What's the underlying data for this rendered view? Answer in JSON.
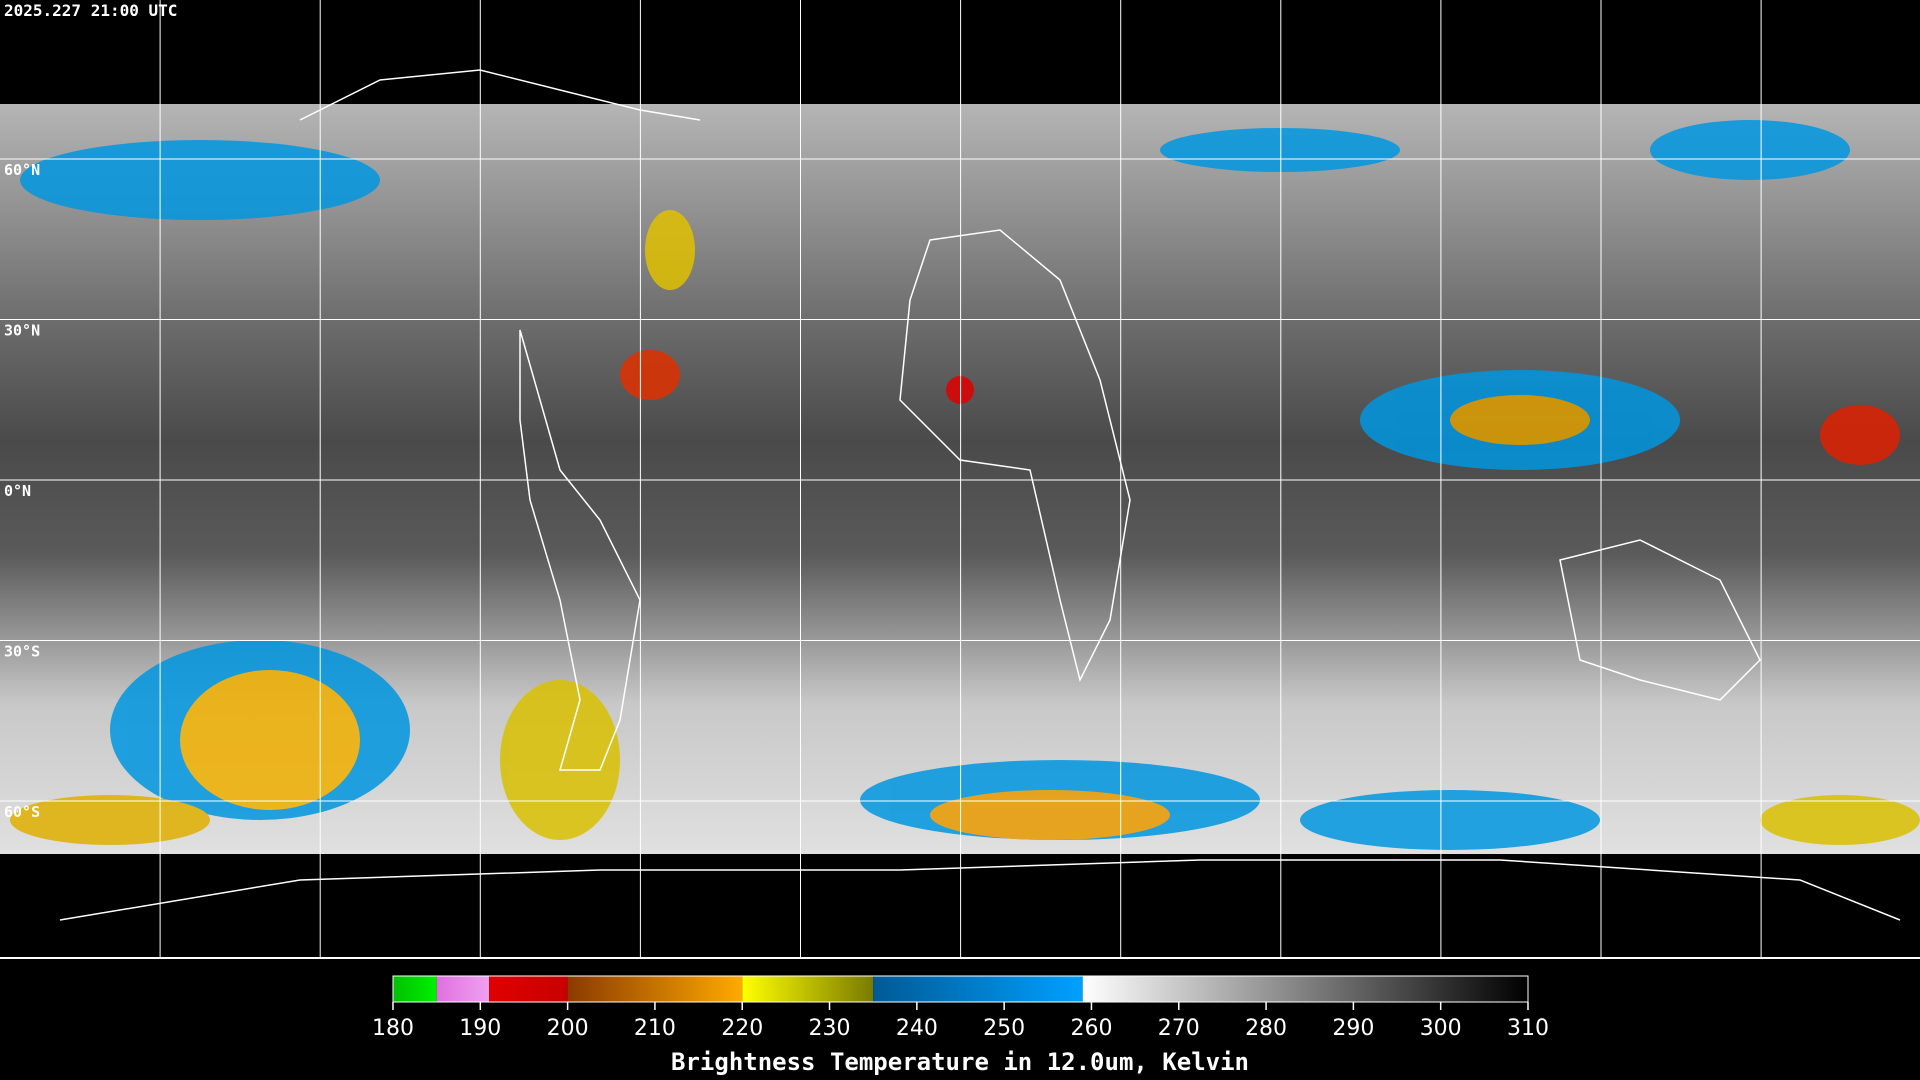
{
  "header": {
    "timestamp": "2025.227 21:00 UTC"
  },
  "map": {
    "lat_labels": [
      "60°N",
      "30°N",
      "0°N",
      "30°S",
      "60°S"
    ]
  },
  "colorbar": {
    "title": "Brightness Temperature in 12.0um, Kelvin",
    "lim": [
      180,
      310
    ],
    "ticks": [
      180,
      190,
      200,
      210,
      220,
      230,
      240,
      250,
      260,
      270,
      280,
      290,
      300,
      310
    ],
    "segments": [
      {
        "from": 180,
        "to": 185,
        "color_start": "#00c000",
        "color_end": "#00f000"
      },
      {
        "from": 185,
        "to": 191,
        "color_start": "#e070e0",
        "color_end": "#f0a0f0"
      },
      {
        "from": 191,
        "to": 200,
        "color_start": "#e00000",
        "color_end": "#c80000"
      },
      {
        "from": 200,
        "to": 220,
        "color_start": "#8a3a00",
        "color_end": "#ffaa00"
      },
      {
        "from": 220,
        "to": 235,
        "color_start": "#ffff00",
        "color_end": "#7a7a00"
      },
      {
        "from": 235,
        "to": 259,
        "color_start": "#005a96",
        "color_end": "#00a0ff"
      },
      {
        "from": 259,
        "to": 310,
        "color_start": "#ffffff",
        "color_end": "#000000"
      }
    ]
  }
}
